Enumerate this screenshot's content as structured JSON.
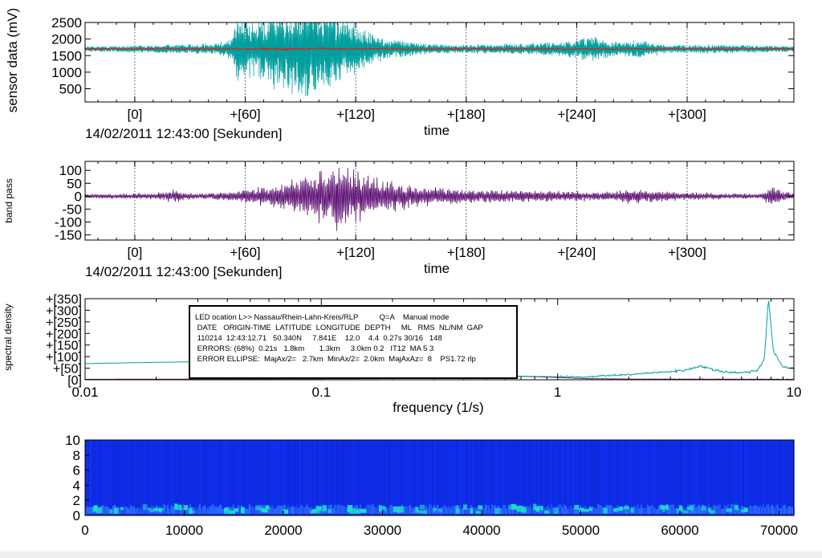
{
  "colors": {
    "raw": "#009e9e",
    "mean": "#e0201a",
    "bandpass": "#5a0a70",
    "spec_teal": "#009e9e",
    "spec_purple": "#6a1a6a",
    "spectrogram_bg": "#1030f0",
    "spectrogram_lo": "#2a70ff",
    "spectrogram_hot": "#19e0c8"
  },
  "chart_data": [
    {
      "id": "sensor",
      "type": "line",
      "ylabel": "sensor data (mV)",
      "xlabel": "time",
      "x_ticks": [
        "[0]",
        "+[60]",
        "+[120]",
        "+[180]",
        "+[240]",
        "+[300]"
      ],
      "x_tick_values": [
        0,
        60,
        120,
        180,
        240,
        300
      ],
      "xlim": [
        -27,
        358
      ],
      "y_ticks": [
        "2500",
        "2000",
        "1500",
        "1000",
        "500"
      ],
      "y_tick_values": [
        2500,
        2000,
        1500,
        1000,
        500
      ],
      "ylim": [
        100,
        2500
      ],
      "baseline": 1700,
      "start_time": "14/02/2011 12:43:00 [Sekunden]",
      "grid": "dashed vertical",
      "series": [
        {
          "role": "raw",
          "envelope": [
            [
              -27,
              80
            ],
            [
              20,
              120
            ],
            [
              40,
              150
            ],
            [
              53,
              300
            ],
            [
              55,
              850
            ],
            [
              70,
              900
            ],
            [
              80,
              1200
            ],
            [
              95,
              1400
            ],
            [
              110,
              1050
            ],
            [
              120,
              650
            ],
            [
              135,
              300
            ],
            [
              160,
              150
            ],
            [
              180,
              120
            ],
            [
              200,
              140
            ],
            [
              230,
              200
            ],
            [
              250,
              380
            ],
            [
              260,
              200
            ],
            [
              275,
              250
            ],
            [
              290,
              120
            ],
            [
              320,
              130
            ],
            [
              358,
              90
            ]
          ]
        },
        {
          "role": "mean",
          "envelope": [
            [
              -27,
              30
            ],
            [
              53,
              60
            ],
            [
              80,
              90
            ],
            [
              110,
              70
            ],
            [
              135,
              50
            ],
            [
              358,
              30
            ]
          ]
        }
      ]
    },
    {
      "id": "bandpass",
      "type": "line",
      "ylabel": "band pass",
      "xlabel": "time",
      "x_ticks": [
        "[0]",
        "+[60]",
        "+[120]",
        "+[180]",
        "+[240]",
        "+[300]"
      ],
      "x_tick_values": [
        0,
        60,
        120,
        180,
        240,
        300
      ],
      "xlim": [
        -27,
        358
      ],
      "y_ticks": [
        "100",
        "50",
        "0",
        "-50",
        "-100",
        "-150"
      ],
      "y_tick_values": [
        100,
        50,
        0,
        -50,
        -100,
        -150
      ],
      "ylim": [
        -170,
        135
      ],
      "start_time": "14/02/2011 12:43:00 [Sekunden]",
      "envelope": [
        [
          -27,
          8
        ],
        [
          10,
          12
        ],
        [
          20,
          28
        ],
        [
          30,
          12
        ],
        [
          55,
          20
        ],
        [
          60,
          30
        ],
        [
          75,
          45
        ],
        [
          90,
          70
        ],
        [
          100,
          110
        ],
        [
          110,
          140
        ],
        [
          115,
          130
        ],
        [
          125,
          90
        ],
        [
          140,
          60
        ],
        [
          155,
          40
        ],
        [
          170,
          35
        ],
        [
          200,
          25
        ],
        [
          230,
          22
        ],
        [
          250,
          18
        ],
        [
          270,
          30
        ],
        [
          300,
          15
        ],
        [
          340,
          10
        ],
        [
          345,
          40
        ],
        [
          358,
          10
        ]
      ]
    },
    {
      "id": "spectrum",
      "type": "line",
      "ylabel": "spectral density",
      "xlabel": "frequency (1/s)",
      "x_scale": "log",
      "xlim": [
        0.01,
        10
      ],
      "x_ticks": [
        "0.01",
        "0.1",
        "1",
        "10"
      ],
      "x_tick_values": [
        0.01,
        0.1,
        1,
        10
      ],
      "ylim": [
        0,
        350
      ],
      "y_ticks": [
        "+[350]",
        "+[300]",
        "+[250]",
        "+[200]",
        "+[150]",
        "+[100]",
        "+[50]",
        "[0]"
      ],
      "y_tick_values": [
        350,
        300,
        250,
        200,
        150,
        100,
        50,
        0
      ],
      "peak_frequency": 7.8,
      "peak_value": 350,
      "teal_points": [
        [
          0.01,
          70
        ],
        [
          0.03,
          78
        ],
        [
          0.06,
          85
        ],
        [
          0.1,
          80
        ],
        [
          0.3,
          45
        ],
        [
          0.5,
          25
        ],
        [
          0.7,
          15
        ],
        [
          1.0,
          13
        ],
        [
          1.3,
          12
        ],
        [
          1.6,
          18
        ],
        [
          2.0,
          22
        ],
        [
          2.5,
          30
        ],
        [
          3.0,
          35
        ],
        [
          3.5,
          42
        ],
        [
          4.0,
          60
        ],
        [
          4.5,
          45
        ],
        [
          5.0,
          35
        ],
        [
          6.0,
          30
        ],
        [
          7.0,
          40
        ],
        [
          7.5,
          90
        ],
        [
          7.8,
          350
        ],
        [
          8.2,
          120
        ],
        [
          9.0,
          55
        ],
        [
          10,
          50
        ]
      ],
      "purple_points": [
        [
          0.01,
          2
        ],
        [
          0.1,
          4
        ],
        [
          0.3,
          6
        ],
        [
          0.7,
          15
        ],
        [
          1.0,
          10
        ],
        [
          1.3,
          5
        ],
        [
          2,
          3
        ],
        [
          10,
          2
        ]
      ]
    },
    {
      "id": "spectrogram",
      "type": "heatmap",
      "xlim": [
        0,
        71500
      ],
      "x_ticks": [
        "0",
        "10000",
        "20000",
        "30000",
        "40000",
        "50000",
        "60000",
        "70000"
      ],
      "x_tick_values": [
        0,
        10000,
        20000,
        30000,
        40000,
        50000,
        60000,
        70000
      ],
      "ylim": [
        0,
        10
      ],
      "y_ticks": [
        "10",
        "8",
        "6",
        "4",
        "2",
        "0"
      ],
      "y_tick_values": [
        10,
        8,
        6,
        4,
        2,
        0
      ],
      "energy_band": [
        0.2,
        1.5
      ],
      "hotspots": [
        2000,
        6500,
        10500,
        14500,
        18500,
        23500,
        27500,
        31000,
        34500,
        38500,
        42500,
        46500,
        49500,
        53500,
        58500,
        61500,
        65500
      ]
    }
  ],
  "annotation": {
    "lines": [
      "LED ocation L>> Nassau/Rhein-Lahn-Kreis/RLP          Q=A    Manual mode",
      " DATE   ORIGIN-TIME  LATITUDE  LONGITUDE  DEPTH     ML   RMS  NL/NM  GAP",
      " 110214  12:43:12.71   50.340N     7.841E    12.0    4.4  0.27s 30/16   148",
      " ERRORS: (68%)  0.21s   1.8km       1.3km     3.0km 0.2   IT12  MA 5 3",
      " ERROR ELLIPSE:  MajAx/2=   2.7km  MinAx/2=  2.0km  MajAxAz=  8    PS1.72 rlp"
    ]
  }
}
